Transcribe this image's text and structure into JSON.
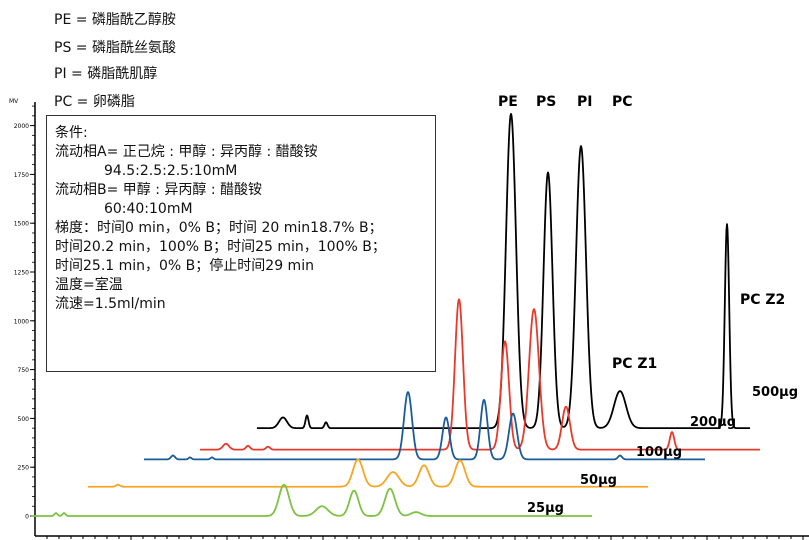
{
  "chart_data": {
    "type": "line",
    "title": "",
    "xlabel": "",
    "ylabel": "MV",
    "ylim": [
      0,
      2100
    ],
    "yticks": [
      0,
      250,
      500,
      750,
      1000,
      1250,
      1500,
      1750,
      2000
    ],
    "grid": false,
    "legend_lines": [
      "PE = 磷脂酰乙醇胺",
      "PS = 磷脂酰丝氨酸",
      "PI = 磷脂酰肌醇",
      "PC = 卵磷脂"
    ],
    "conditions": [
      "条件:",
      "流动相A= 正己烷 : 甲醇 : 异丙醇 : 醋酸铵",
      "           94.5:2.5:2.5:10mM",
      "流动相B= 甲醇 : 异丙醇 : 醋酸铵",
      "           60:40:10mM",
      "梯度：时间0 min，0% B；时间 20 min18.7% B；",
      "时间20.2 min，100% B；时间25 min，100% B；",
      "时间25.1 min，0% B；停止时间29 min",
      "温度=室温",
      "流速=1.5ml/min"
    ],
    "annotations": {
      "PE": "PE",
      "PS": "PS",
      "PI": "PI",
      "PC": "PC",
      "PC_Z1": "PC Z1",
      "PC_Z2": "PC Z2"
    },
    "series": [
      {
        "name": "500μg",
        "color": "#000000",
        "baseline": 450,
        "peaks": [
          {
            "label": "",
            "height": 55
          },
          {
            "label": "",
            "height": 65
          },
          {
            "label": "",
            "height": 30
          },
          {
            "label": "PE",
            "height": 1610
          },
          {
            "label": "PS",
            "height": 1310
          },
          {
            "label": "PI",
            "height": 1445
          },
          {
            "label": "PC Z1",
            "height": 190
          },
          {
            "label": "PC Z2",
            "height": 1045
          }
        ]
      },
      {
        "name": "200μg",
        "color": "#e8392b",
        "baseline": 340,
        "peaks": [
          {
            "label": "",
            "height": 30
          },
          {
            "label": "",
            "height": 20
          },
          {
            "label": "",
            "height": 15
          },
          {
            "label": "",
            "height": 770
          },
          {
            "label": "",
            "height": 555
          },
          {
            "label": "",
            "height": 720
          },
          {
            "label": "",
            "height": 220
          },
          {
            "label": "",
            "height": 90
          }
        ]
      },
      {
        "name": "100μg",
        "color": "#1a5b9c",
        "baseline": 290,
        "peaks": [
          {
            "label": "",
            "height": 20
          },
          {
            "label": "",
            "height": 10
          },
          {
            "label": "",
            "height": 10
          },
          {
            "label": "",
            "height": 345
          },
          {
            "label": "",
            "height": 215
          },
          {
            "label": "",
            "height": 305
          },
          {
            "label": "",
            "height": 235
          },
          {
            "label": "",
            "height": 20
          }
        ]
      },
      {
        "name": "50μg",
        "color": "#f5a623",
        "baseline": 150,
        "peaks": [
          {
            "label": "",
            "height": 10
          },
          {
            "label": "",
            "height": 140
          },
          {
            "label": "",
            "height": 75
          },
          {
            "label": "",
            "height": 110
          },
          {
            "label": "",
            "height": 135
          }
        ]
      },
      {
        "name": "25μg",
        "color": "#7dc242",
        "baseline": 0,
        "peaks": [
          {
            "label": "",
            "height": 15
          },
          {
            "label": "",
            "height": 15
          },
          {
            "label": "",
            "height": 160
          },
          {
            "label": "",
            "height": 50
          },
          {
            "label": "",
            "height": 130
          },
          {
            "label": "",
            "height": 140
          },
          {
            "label": "",
            "height": 20
          }
        ]
      }
    ]
  }
}
